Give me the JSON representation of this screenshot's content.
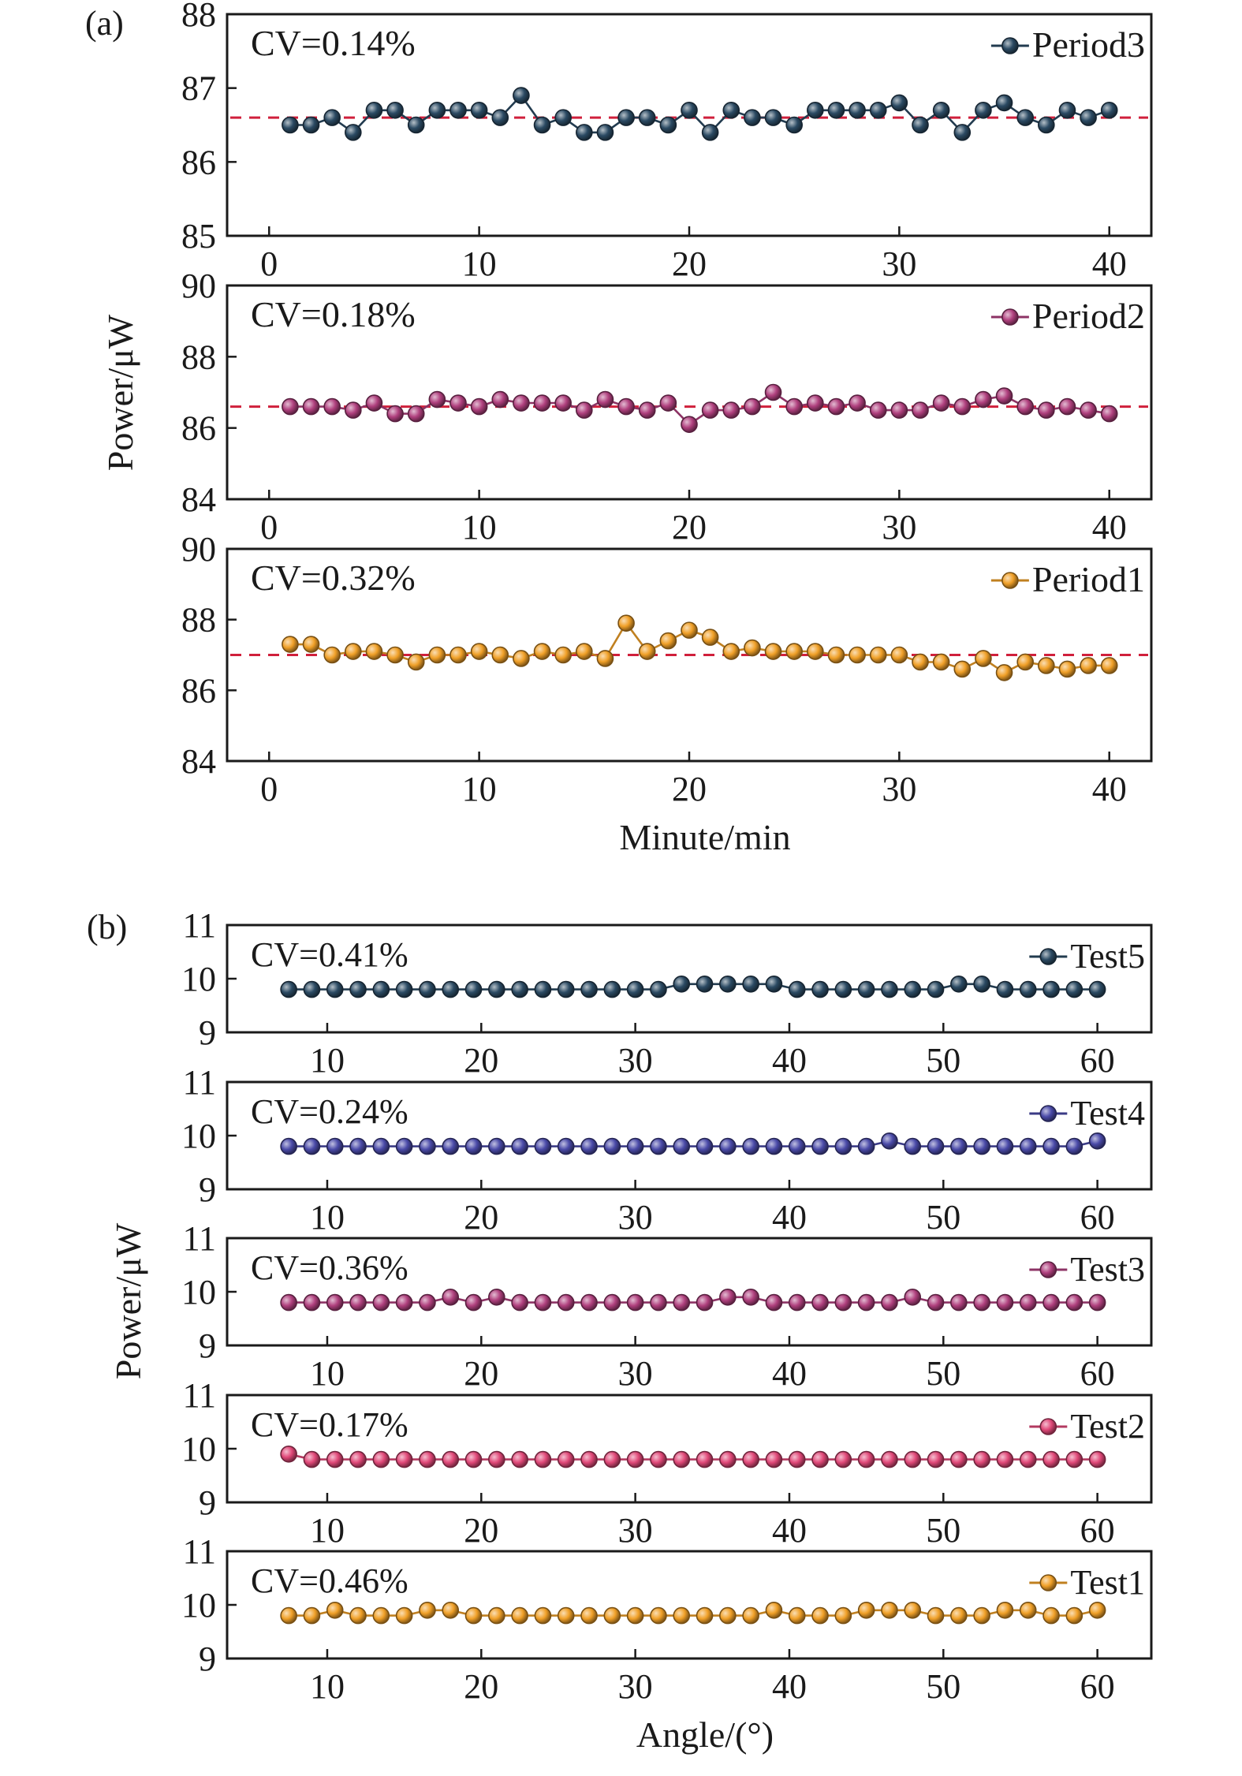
{
  "figure": {
    "label_a": "(a)",
    "label_b": "(b)"
  },
  "chart_data": [
    {
      "type": "line",
      "panel": "a",
      "name": "Period3",
      "cv": "CV=0.14%",
      "color": "#2b4a63",
      "x": [
        1,
        2,
        3,
        4,
        5,
        6,
        7,
        8,
        9,
        10,
        11,
        12,
        13,
        14,
        15,
        16,
        17,
        18,
        19,
        20,
        21,
        22,
        23,
        24,
        25,
        26,
        27,
        28,
        29,
        30,
        31,
        32,
        33,
        34,
        35,
        36,
        37,
        38,
        39,
        40
      ],
      "values": [
        86.5,
        86.5,
        86.6,
        86.4,
        86.7,
        86.7,
        86.5,
        86.7,
        86.7,
        86.7,
        86.6,
        86.9,
        86.5,
        86.6,
        86.4,
        86.4,
        86.6,
        86.6,
        86.5,
        86.7,
        86.4,
        86.7,
        86.6,
        86.6,
        86.5,
        86.7,
        86.7,
        86.7,
        86.7,
        86.8,
        86.5,
        86.7,
        86.4,
        86.7,
        86.8,
        86.6,
        86.5,
        86.7,
        86.6,
        86.7
      ],
      "reference": 86.6,
      "xlim": [
        -2,
        42
      ],
      "ylim": [
        85,
        88
      ],
      "yticks": [
        85,
        86,
        87,
        88
      ],
      "xticks": [
        0,
        10,
        20,
        30,
        40
      ],
      "grid": false,
      "legend": "top-right"
    },
    {
      "type": "line",
      "panel": "a",
      "name": "Period2",
      "cv": "CV=0.18%",
      "color": "#b0407e",
      "x": [
        1,
        2,
        3,
        4,
        5,
        6,
        7,
        8,
        9,
        10,
        11,
        12,
        13,
        14,
        15,
        16,
        17,
        18,
        19,
        20,
        21,
        22,
        23,
        24,
        25,
        26,
        27,
        28,
        29,
        30,
        31,
        32,
        33,
        34,
        35,
        36,
        37,
        38,
        39,
        40
      ],
      "values": [
        86.6,
        86.6,
        86.6,
        86.5,
        86.7,
        86.4,
        86.4,
        86.8,
        86.7,
        86.6,
        86.8,
        86.7,
        86.7,
        86.7,
        86.5,
        86.8,
        86.6,
        86.5,
        86.7,
        86.1,
        86.5,
        86.5,
        86.6,
        87.0,
        86.6,
        86.7,
        86.6,
        86.7,
        86.5,
        86.5,
        86.5,
        86.7,
        86.6,
        86.8,
        86.9,
        86.6,
        86.5,
        86.6,
        86.5,
        86.4
      ],
      "reference": 86.6,
      "xlim": [
        -2,
        42
      ],
      "ylim": [
        84,
        90
      ],
      "yticks": [
        84,
        86,
        88,
        90
      ],
      "xticks": [
        0,
        10,
        20,
        30,
        40
      ],
      "grid": false,
      "legend": "top-right"
    },
    {
      "type": "line",
      "panel": "a",
      "name": "Period1",
      "cv": "CV=0.32%",
      "color": "#f0a028",
      "x": [
        1,
        2,
        3,
        4,
        5,
        6,
        7,
        8,
        9,
        10,
        11,
        12,
        13,
        14,
        15,
        16,
        17,
        18,
        19,
        20,
        21,
        22,
        23,
        24,
        25,
        26,
        27,
        28,
        29,
        30,
        31,
        32,
        33,
        34,
        35,
        36,
        37,
        38,
        39,
        40
      ],
      "values": [
        87.3,
        87.3,
        87.0,
        87.1,
        87.1,
        87.0,
        86.8,
        87.0,
        87.0,
        87.1,
        87.0,
        86.9,
        87.1,
        87.0,
        87.1,
        86.9,
        87.9,
        87.1,
        87.4,
        87.7,
        87.5,
        87.1,
        87.2,
        87.1,
        87.1,
        87.1,
        87.0,
        87.0,
        87.0,
        87.0,
        86.8,
        86.8,
        86.6,
        86.9,
        86.5,
        86.8,
        86.7,
        86.6,
        86.7,
        86.7
      ],
      "reference": 87.0,
      "xlim": [
        -2,
        42
      ],
      "ylim": [
        84,
        90
      ],
      "yticks": [
        84,
        86,
        88,
        90
      ],
      "xticks": [
        0,
        10,
        20,
        30,
        40
      ],
      "xlabel": "Minute/min",
      "grid": false,
      "legend": "top-right"
    },
    {
      "type": "line",
      "panel": "b",
      "name": "Test5",
      "cv": "CV=0.41%",
      "color": "#2b4a63",
      "x": [
        7.5,
        9,
        10.5,
        12,
        13.5,
        15,
        16.5,
        18,
        19.5,
        21,
        22.5,
        24,
        25.5,
        27,
        28.5,
        30,
        31.5,
        33,
        34.5,
        36,
        37.5,
        39,
        40.5,
        42,
        43.5,
        45,
        46.5,
        48,
        49.5,
        51,
        52.5,
        54,
        55.5,
        57,
        58.5,
        60
      ],
      "values": [
        9.8,
        9.8,
        9.8,
        9.8,
        9.8,
        9.8,
        9.8,
        9.8,
        9.8,
        9.8,
        9.8,
        9.8,
        9.8,
        9.8,
        9.8,
        9.8,
        9.8,
        9.9,
        9.9,
        9.9,
        9.9,
        9.9,
        9.8,
        9.8,
        9.8,
        9.8,
        9.8,
        9.8,
        9.8,
        9.9,
        9.9,
        9.8,
        9.8,
        9.8,
        9.8,
        9.8
      ],
      "xlim": [
        3.5,
        63.5
      ],
      "ylim": [
        9,
        11
      ],
      "yticks": [
        9,
        10,
        11
      ],
      "xticks": [
        10,
        20,
        30,
        40,
        50,
        60
      ],
      "grid": false,
      "legend": "top-right"
    },
    {
      "type": "line",
      "panel": "b",
      "name": "Test4",
      "cv": "CV=0.24%",
      "color": "#4a4aa8",
      "x": [
        7.5,
        9,
        10.5,
        12,
        13.5,
        15,
        16.5,
        18,
        19.5,
        21,
        22.5,
        24,
        25.5,
        27,
        28.5,
        30,
        31.5,
        33,
        34.5,
        36,
        37.5,
        39,
        40.5,
        42,
        43.5,
        45,
        46.5,
        48,
        49.5,
        51,
        52.5,
        54,
        55.5,
        57,
        58.5,
        60
      ],
      "values": [
        9.8,
        9.8,
        9.8,
        9.8,
        9.8,
        9.8,
        9.8,
        9.8,
        9.8,
        9.8,
        9.8,
        9.8,
        9.8,
        9.8,
        9.8,
        9.8,
        9.8,
        9.8,
        9.8,
        9.8,
        9.8,
        9.8,
        9.8,
        9.8,
        9.8,
        9.8,
        9.9,
        9.8,
        9.8,
        9.8,
        9.8,
        9.8,
        9.8,
        9.8,
        9.8,
        9.9
      ],
      "xlim": [
        3.5,
        63.5
      ],
      "ylim": [
        9,
        11
      ],
      "yticks": [
        9,
        10,
        11
      ],
      "xticks": [
        10,
        20,
        30,
        40,
        50,
        60
      ],
      "grid": false,
      "legend": "top-right"
    },
    {
      "type": "line",
      "panel": "b",
      "name": "Test3",
      "cv": "CV=0.36%",
      "color": "#b0407e",
      "x": [
        7.5,
        9,
        10.5,
        12,
        13.5,
        15,
        16.5,
        18,
        19.5,
        21,
        22.5,
        24,
        25.5,
        27,
        28.5,
        30,
        31.5,
        33,
        34.5,
        36,
        37.5,
        39,
        40.5,
        42,
        43.5,
        45,
        46.5,
        48,
        49.5,
        51,
        52.5,
        54,
        55.5,
        57,
        58.5,
        60
      ],
      "values": [
        9.8,
        9.8,
        9.8,
        9.8,
        9.8,
        9.8,
        9.8,
        9.9,
        9.8,
        9.9,
        9.8,
        9.8,
        9.8,
        9.8,
        9.8,
        9.8,
        9.8,
        9.8,
        9.8,
        9.9,
        9.9,
        9.8,
        9.8,
        9.8,
        9.8,
        9.8,
        9.8,
        9.9,
        9.8,
        9.8,
        9.8,
        9.8,
        9.8,
        9.8,
        9.8,
        9.8
      ],
      "xlim": [
        3.5,
        63.5
      ],
      "ylim": [
        9,
        11
      ],
      "yticks": [
        9,
        10,
        11
      ],
      "xticks": [
        10,
        20,
        30,
        40,
        50,
        60
      ],
      "grid": false,
      "legend": "top-right"
    },
    {
      "type": "line",
      "panel": "b",
      "name": "Test2",
      "cv": "CV=0.17%",
      "color": "#e04878",
      "x": [
        7.5,
        9,
        10.5,
        12,
        13.5,
        15,
        16.5,
        18,
        19.5,
        21,
        22.5,
        24,
        25.5,
        27,
        28.5,
        30,
        31.5,
        33,
        34.5,
        36,
        37.5,
        39,
        40.5,
        42,
        43.5,
        45,
        46.5,
        48,
        49.5,
        51,
        52.5,
        54,
        55.5,
        57,
        58.5,
        60
      ],
      "values": [
        9.9,
        9.8,
        9.8,
        9.8,
        9.8,
        9.8,
        9.8,
        9.8,
        9.8,
        9.8,
        9.8,
        9.8,
        9.8,
        9.8,
        9.8,
        9.8,
        9.8,
        9.8,
        9.8,
        9.8,
        9.8,
        9.8,
        9.8,
        9.8,
        9.8,
        9.8,
        9.8,
        9.8,
        9.8,
        9.8,
        9.8,
        9.8,
        9.8,
        9.8,
        9.8,
        9.8
      ],
      "xlim": [
        3.5,
        63.5
      ],
      "ylim": [
        9,
        11
      ],
      "yticks": [
        9,
        10,
        11
      ],
      "xticks": [
        10,
        20,
        30,
        40,
        50,
        60
      ],
      "grid": false,
      "legend": "top-right"
    },
    {
      "type": "line",
      "panel": "b",
      "name": "Test1",
      "cv": "CV=0.46%",
      "color": "#f0a028",
      "x": [
        7.5,
        9,
        10.5,
        12,
        13.5,
        15,
        16.5,
        18,
        19.5,
        21,
        22.5,
        24,
        25.5,
        27,
        28.5,
        30,
        31.5,
        33,
        34.5,
        36,
        37.5,
        39,
        40.5,
        42,
        43.5,
        45,
        46.5,
        48,
        49.5,
        51,
        52.5,
        54,
        55.5,
        57,
        58.5,
        60
      ],
      "values": [
        9.8,
        9.8,
        9.9,
        9.8,
        9.8,
        9.8,
        9.9,
        9.9,
        9.8,
        9.8,
        9.8,
        9.8,
        9.8,
        9.8,
        9.8,
        9.8,
        9.8,
        9.8,
        9.8,
        9.8,
        9.8,
        9.9,
        9.8,
        9.8,
        9.8,
        9.9,
        9.9,
        9.9,
        9.8,
        9.8,
        9.8,
        9.9,
        9.9,
        9.8,
        9.8,
        9.9
      ],
      "xlim": [
        3.5,
        63.5
      ],
      "ylim": [
        9,
        11
      ],
      "yticks": [
        9,
        10,
        11
      ],
      "xticks": [
        10,
        20,
        30,
        40,
        50,
        60
      ],
      "xlabel": "Angle/(°)",
      "grid": false,
      "legend": "top-right"
    }
  ],
  "axes": {
    "ylabel_a": "Power/μW",
    "ylabel_b": "Power/μW"
  }
}
